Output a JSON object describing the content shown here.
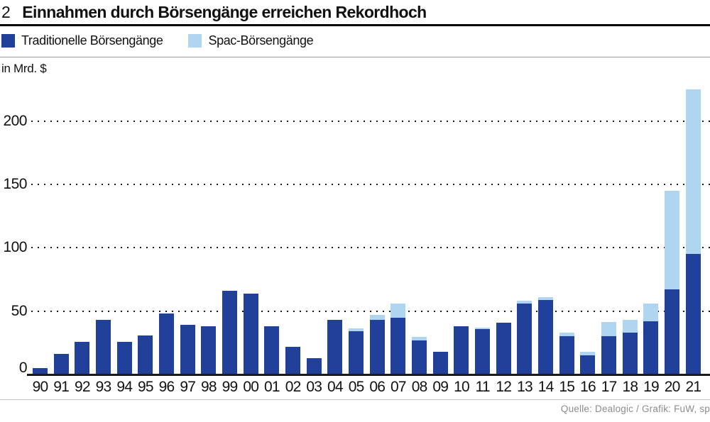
{
  "figure_number": "2",
  "title": "Einnahmen durch Börsengänge erreichen Rekordhoch",
  "legend": [
    {
      "label": "Traditionelle Börsengänge",
      "color": "#21409a"
    },
    {
      "label": "Spac-Börsengänge",
      "color": "#afd5f1"
    }
  ],
  "unit_label": "in Mrd. $",
  "source": "Quelle: Dealogic / Grafik: FuW, sp",
  "colors": {
    "traditional_blue": "#21409a",
    "spac_lightblue": "#afd5f1",
    "axis_black": "#1a1a1a",
    "rule_gray": "#9a9a9a",
    "source_gray": "#8c8c8c"
  },
  "chart_data": {
    "type": "bar",
    "stacked": true,
    "title": "Einnahmen durch Börsengänge erreichen Rekordhoch",
    "xlabel": "",
    "ylabel": "in Mrd. $",
    "yticks": [
      0,
      50,
      100,
      150,
      200
    ],
    "ylim": [
      0,
      234
    ],
    "grid": "dotted horizontal",
    "legend_position": "top-left",
    "categories": [
      "90",
      "91",
      "92",
      "93",
      "94",
      "95",
      "96",
      "97",
      "98",
      "99",
      "00",
      "01",
      "02",
      "03",
      "04",
      "05",
      "06",
      "07",
      "08",
      "09",
      "10",
      "11",
      "12",
      "13",
      "14",
      "15",
      "16",
      "17",
      "18",
      "19",
      "20",
      "21"
    ],
    "series": [
      {
        "name": "Traditionelle Börsengänge",
        "color": "#21409a",
        "values": [
          5,
          16,
          26,
          43,
          26,
          31,
          48,
          39,
          38,
          66,
          64,
          38,
          22,
          13,
          43,
          34,
          43,
          45,
          27,
          18,
          38,
          36,
          41,
          56,
          59,
          30,
          15,
          30,
          33,
          42,
          67,
          95
        ]
      },
      {
        "name": "Spac-Börsengänge",
        "color": "#afd5f1",
        "values": [
          0,
          0,
          0,
          0,
          0,
          0,
          0,
          0,
          0,
          0,
          0,
          0,
          0,
          0,
          0,
          2,
          4,
          11,
          3,
          0,
          0,
          1,
          0,
          2,
          2,
          3,
          3,
          11,
          10,
          14,
          78,
          130
        ]
      }
    ]
  }
}
